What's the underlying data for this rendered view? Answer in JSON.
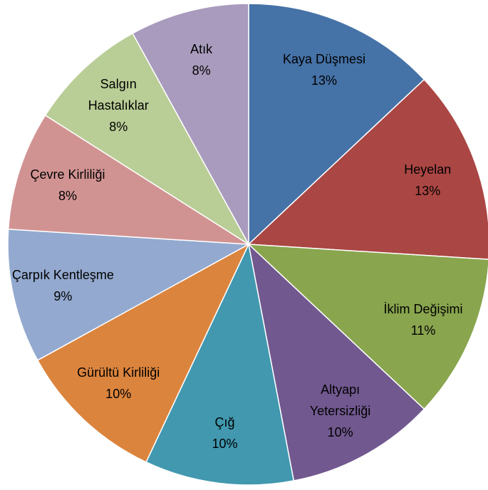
{
  "chart_data": {
    "type": "pie",
    "categories": [
      "Kaya Düşmesi",
      "Heyelan",
      "İklim Değişimi",
      "Altyapı Yetersizliği",
      "Çığ",
      "Gürültü Kirliliği",
      "Çarpık Kentleşme",
      "Çevre Kirliliği",
      "Salgın Hastalıklar",
      "Atık"
    ],
    "values": [
      13,
      13,
      11,
      10,
      10,
      10,
      9,
      8,
      8,
      8
    ],
    "value_labels": [
      "13%",
      "13%",
      "11%",
      "10%",
      "10%",
      "10%",
      "9%",
      "8%",
      "8%",
      "8%"
    ],
    "colors": [
      "#4572a7",
      "#aa4643",
      "#89a54e",
      "#71588f",
      "#4198af",
      "#db843d",
      "#93a9cf",
      "#d19392",
      "#b9cd96",
      "#a99bbd"
    ]
  }
}
